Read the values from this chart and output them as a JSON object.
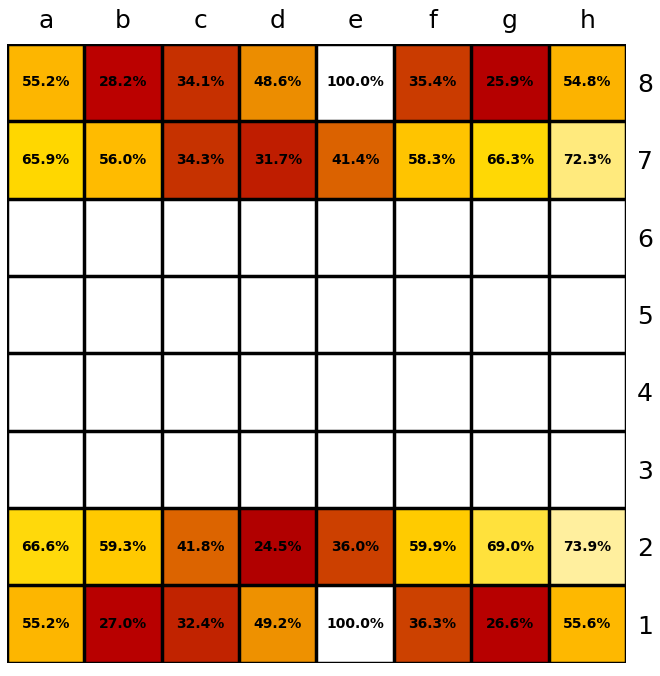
{
  "cols": [
    "a",
    "b",
    "c",
    "d",
    "e",
    "f",
    "g",
    "h"
  ],
  "rows": [
    8,
    7,
    6,
    5,
    4,
    3,
    2,
    1
  ],
  "values": [
    [
      55.2,
      28.2,
      34.1,
      48.6,
      100.0,
      35.4,
      25.9,
      54.8
    ],
    [
      65.9,
      56.0,
      34.3,
      31.7,
      41.4,
      58.3,
      66.3,
      72.3
    ],
    [
      null,
      null,
      null,
      null,
      null,
      null,
      null,
      null
    ],
    [
      null,
      null,
      null,
      null,
      null,
      null,
      null,
      null
    ],
    [
      null,
      null,
      null,
      null,
      null,
      null,
      null,
      null
    ],
    [
      null,
      null,
      null,
      null,
      null,
      null,
      null,
      null
    ],
    [
      66.6,
      59.3,
      41.8,
      24.5,
      36.0,
      59.9,
      69.0,
      73.9
    ],
    [
      55.2,
      27.0,
      32.4,
      49.2,
      100.0,
      36.3,
      26.6,
      55.6
    ]
  ],
  "col_labels": [
    "a",
    "b",
    "c",
    "d",
    "e",
    "f",
    "g",
    "h"
  ],
  "row_labels": [
    "8",
    "7",
    "6",
    "5",
    "4",
    "3",
    "2",
    "1"
  ],
  "grid_color": "#000000",
  "bg_color": "#ffffff",
  "text_color_light": "#ffffff",
  "text_color_dark": "#000000",
  "border_lw": 2.5,
  "inner_lw": 1.5
}
